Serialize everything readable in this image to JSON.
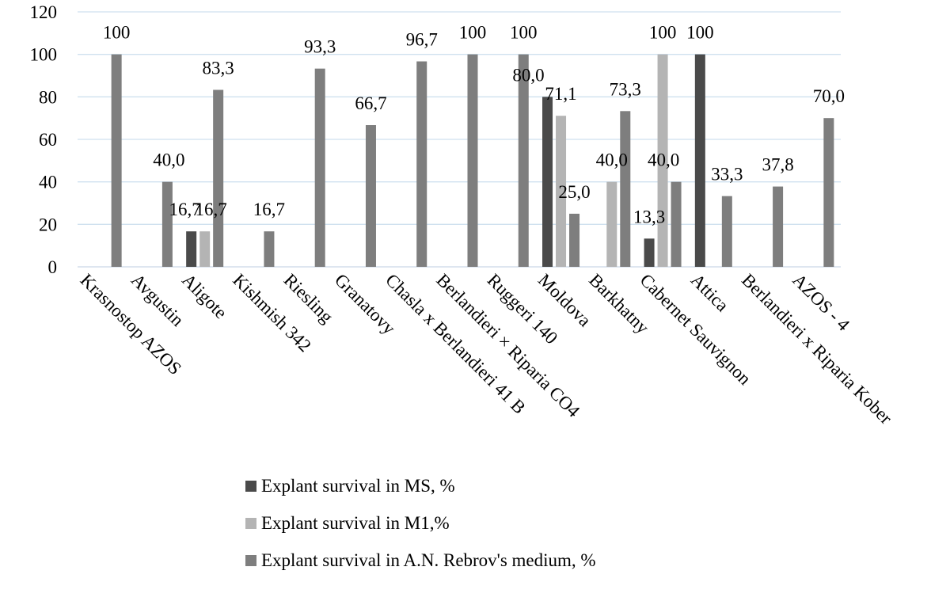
{
  "chart_data": {
    "type": "bar",
    "title": "",
    "xlabel": "",
    "ylabel": "",
    "ylim": [
      0,
      120
    ],
    "yticks": [
      0,
      20,
      40,
      60,
      80,
      100,
      120
    ],
    "grid": true,
    "legend_position": "bottom",
    "categories": [
      "Krasnostop AZOS",
      "Avgustin",
      "Aligote",
      "Kishmish 342",
      "Riesling",
      "Granatovy",
      "Chasla x Berlandieri 41 B",
      "Berlandieri × Riparia CO4",
      "Ruggeri 140",
      "Moldova",
      "Barkhatny",
      "Cabernet Sauvignon",
      "Attica",
      "Berlandieri x Riparia Kober",
      "AZOS - 4"
    ],
    "series": [
      {
        "name": "Explant survival in MS, %",
        "color": "#4a4a4a",
        "values": [
          null,
          null,
          16.7,
          null,
          null,
          null,
          null,
          null,
          null,
          80.0,
          null,
          13.3,
          100,
          null,
          null
        ],
        "labels": [
          null,
          null,
          "16,7",
          null,
          null,
          null,
          null,
          null,
          null,
          "80,0",
          null,
          "13,3",
          "100",
          null,
          null
        ]
      },
      {
        "name": "Explant survival in M1,%",
        "color": "#b4b4b4",
        "values": [
          null,
          null,
          16.7,
          null,
          null,
          null,
          null,
          null,
          null,
          71.1,
          40.0,
          100,
          null,
          null,
          null
        ],
        "labels": [
          null,
          null,
          "16,7",
          null,
          null,
          null,
          null,
          null,
          null,
          "71,1",
          "40,0",
          "100",
          null,
          null,
          null
        ]
      },
      {
        "name": "Explant survival in A.N. Rebrov's medium, %",
        "color": "#7e7e7e",
        "values": [
          100,
          40.0,
          83.3,
          16.7,
          93.3,
          66.7,
          96.7,
          100,
          100,
          25.0,
          73.3,
          40.0,
          33.3,
          37.8,
          70.0
        ],
        "labels": [
          "100",
          "40,0",
          "83,3",
          "16,7",
          "93,3",
          "66,7",
          "96,7",
          "100",
          "100",
          "25,0",
          "73,3",
          "40,0",
          "33,3",
          "37,8",
          "70,0"
        ]
      }
    ]
  }
}
